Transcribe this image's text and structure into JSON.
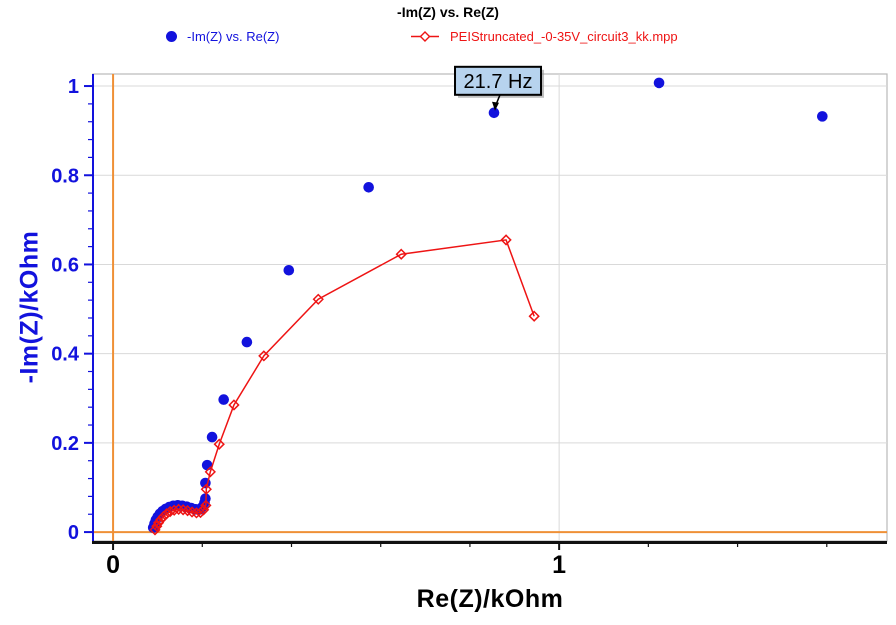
{
  "title": "-Im(Z) vs. Re(Z)",
  "colors": {
    "blue": "#1212dd",
    "red": "#ee1414",
    "origin_lines": "#ef9036",
    "grid": "#d9d9d9",
    "border": "#b9b9b9",
    "axis_black": "#111111",
    "annotation_fill": "#b7d3ee",
    "annotation_border": "#000000",
    "annotation_shadow": "#8a8a8a"
  },
  "legend": {
    "items": [
      {
        "label": "-Im(Z) vs. Re(Z)",
        "color": "#1212dd",
        "marker": "filled-circle"
      },
      {
        "label": "PEIStruncated_-0-35V_circuit3_kk.mpp",
        "color": "#ee1414",
        "marker": "line-open-diamond"
      }
    ]
  },
  "chart_data": {
    "type": "scatter",
    "title": "-Im(Z) vs. Re(Z)",
    "xlabel": "Re(Z)/kOhm",
    "ylabel": "-Im(Z)/kOhm",
    "xlim": [
      -0.045,
      1.735
    ],
    "ylim": [
      -0.02,
      1.027
    ],
    "x_major_ticks": [
      0,
      1
    ],
    "y_major_ticks": [
      0,
      0.2,
      0.4,
      0.6,
      0.8,
      1
    ],
    "x_minor_step": 0.2,
    "y_minor_step": 0.04,
    "grid": true,
    "legend_position": "top",
    "series": [
      {
        "name": "-Im(Z) vs. Re(Z)",
        "style": "scatter",
        "marker": "filled-circle",
        "color": "#1212dd",
        "points": [
          [
            0.09,
            0.01
          ],
          [
            0.093,
            0.019
          ],
          [
            0.096,
            0.027
          ],
          [
            0.1,
            0.034
          ],
          [
            0.105,
            0.041
          ],
          [
            0.111,
            0.047
          ],
          [
            0.118,
            0.052
          ],
          [
            0.126,
            0.056
          ],
          [
            0.135,
            0.059
          ],
          [
            0.145,
            0.06
          ],
          [
            0.155,
            0.059
          ],
          [
            0.165,
            0.057
          ],
          [
            0.175,
            0.054
          ],
          [
            0.185,
            0.051
          ],
          [
            0.194,
            0.051
          ],
          [
            0.2,
            0.056
          ],
          [
            0.205,
            0.066
          ],
          [
            0.207,
            0.075
          ],
          [
            0.207,
            0.11
          ],
          [
            0.211,
            0.15
          ],
          [
            0.222,
            0.213
          ],
          [
            0.248,
            0.297
          ],
          [
            0.3,
            0.426
          ],
          [
            0.394,
            0.587
          ],
          [
            0.573,
            0.773
          ],
          [
            0.854,
            0.94
          ],
          [
            1.224,
            1.007
          ],
          [
            1.59,
            0.932
          ]
        ]
      },
      {
        "name": "PEIStruncated_-0-35V_circuit3_kk.mpp",
        "style": "line-scatter",
        "marker": "open-diamond",
        "color": "#ee1414",
        "points": [
          [
            0.094,
            0.005
          ],
          [
            0.098,
            0.013
          ],
          [
            0.102,
            0.021
          ],
          [
            0.107,
            0.028
          ],
          [
            0.113,
            0.035
          ],
          [
            0.12,
            0.041
          ],
          [
            0.128,
            0.046
          ],
          [
            0.137,
            0.049
          ],
          [
            0.147,
            0.051
          ],
          [
            0.157,
            0.05
          ],
          [
            0.167,
            0.048
          ],
          [
            0.177,
            0.045
          ],
          [
            0.187,
            0.043
          ],
          [
            0.196,
            0.044
          ],
          [
            0.203,
            0.05
          ],
          [
            0.208,
            0.06
          ],
          [
            0.209,
            0.096
          ],
          [
            0.218,
            0.135
          ],
          [
            0.238,
            0.197
          ],
          [
            0.271,
            0.285
          ],
          [
            0.338,
            0.395
          ],
          [
            0.46,
            0.522
          ],
          [
            0.646,
            0.623
          ],
          [
            0.881,
            0.655
          ],
          [
            0.944,
            0.484
          ]
        ]
      }
    ],
    "annotations": [
      {
        "text": "21.7 Hz",
        "x": 0.854,
        "y": 0.94,
        "series": "-Im(Z) vs. Re(Z)"
      }
    ]
  }
}
